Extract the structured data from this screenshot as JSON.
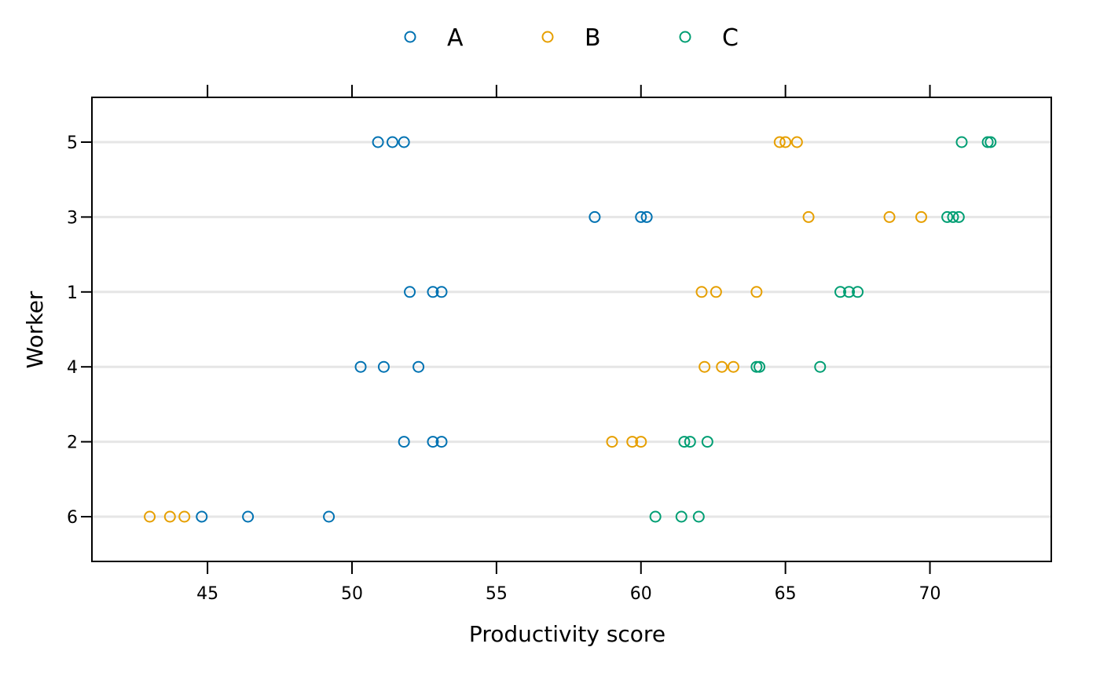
{
  "chart_data": {
    "type": "scatter",
    "xlabel": "Productivity score",
    "ylabel": "Worker",
    "xlim": [
      41,
      74.2
    ],
    "x_ticks": [
      45,
      50,
      55,
      60,
      65,
      70
    ],
    "y_categories": [
      "6",
      "2",
      "4",
      "1",
      "3",
      "5"
    ],
    "grid": "horizontal",
    "legend_position": "top",
    "series": [
      {
        "name": "A",
        "color": "#0072B2",
        "points": [
          {
            "worker": "5",
            "x": 50.9
          },
          {
            "worker": "5",
            "x": 51.4
          },
          {
            "worker": "5",
            "x": 51.8
          },
          {
            "worker": "3",
            "x": 58.4
          },
          {
            "worker": "3",
            "x": 60.0
          },
          {
            "worker": "3",
            "x": 60.2
          },
          {
            "worker": "1",
            "x": 52.0
          },
          {
            "worker": "1",
            "x": 52.8
          },
          {
            "worker": "1",
            "x": 53.1
          },
          {
            "worker": "4",
            "x": 50.3
          },
          {
            "worker": "4",
            "x": 51.1
          },
          {
            "worker": "4",
            "x": 52.3
          },
          {
            "worker": "2",
            "x": 51.8
          },
          {
            "worker": "2",
            "x": 52.8
          },
          {
            "worker": "2",
            "x": 53.1
          },
          {
            "worker": "6",
            "x": 44.8
          },
          {
            "worker": "6",
            "x": 46.4
          },
          {
            "worker": "6",
            "x": 49.2
          }
        ]
      },
      {
        "name": "B",
        "color": "#E69F00",
        "points": [
          {
            "worker": "5",
            "x": 64.8
          },
          {
            "worker": "5",
            "x": 65.0
          },
          {
            "worker": "5",
            "x": 65.4
          },
          {
            "worker": "3",
            "x": 65.8
          },
          {
            "worker": "3",
            "x": 68.6
          },
          {
            "worker": "3",
            "x": 69.7
          },
          {
            "worker": "1",
            "x": 62.1
          },
          {
            "worker": "1",
            "x": 62.6
          },
          {
            "worker": "1",
            "x": 64.0
          },
          {
            "worker": "4",
            "x": 62.2
          },
          {
            "worker": "4",
            "x": 62.8
          },
          {
            "worker": "4",
            "x": 63.2
          },
          {
            "worker": "2",
            "x": 59.0
          },
          {
            "worker": "2",
            "x": 59.7
          },
          {
            "worker": "2",
            "x": 60.0
          },
          {
            "worker": "6",
            "x": 43.0
          },
          {
            "worker": "6",
            "x": 43.7
          },
          {
            "worker": "6",
            "x": 44.2
          }
        ]
      },
      {
        "name": "C",
        "color": "#009E73",
        "points": [
          {
            "worker": "5",
            "x": 71.1
          },
          {
            "worker": "5",
            "x": 72.0
          },
          {
            "worker": "5",
            "x": 72.1
          },
          {
            "worker": "3",
            "x": 70.6
          },
          {
            "worker": "3",
            "x": 70.8
          },
          {
            "worker": "3",
            "x": 71.0
          },
          {
            "worker": "1",
            "x": 66.9
          },
          {
            "worker": "1",
            "x": 67.2
          },
          {
            "worker": "1",
            "x": 67.5
          },
          {
            "worker": "4",
            "x": 64.0
          },
          {
            "worker": "4",
            "x": 64.1
          },
          {
            "worker": "4",
            "x": 66.2
          },
          {
            "worker": "2",
            "x": 61.5
          },
          {
            "worker": "2",
            "x": 61.7
          },
          {
            "worker": "2",
            "x": 62.3
          },
          {
            "worker": "6",
            "x": 60.5
          },
          {
            "worker": "6",
            "x": 61.4
          },
          {
            "worker": "6",
            "x": 62.0
          }
        ]
      }
    ]
  }
}
